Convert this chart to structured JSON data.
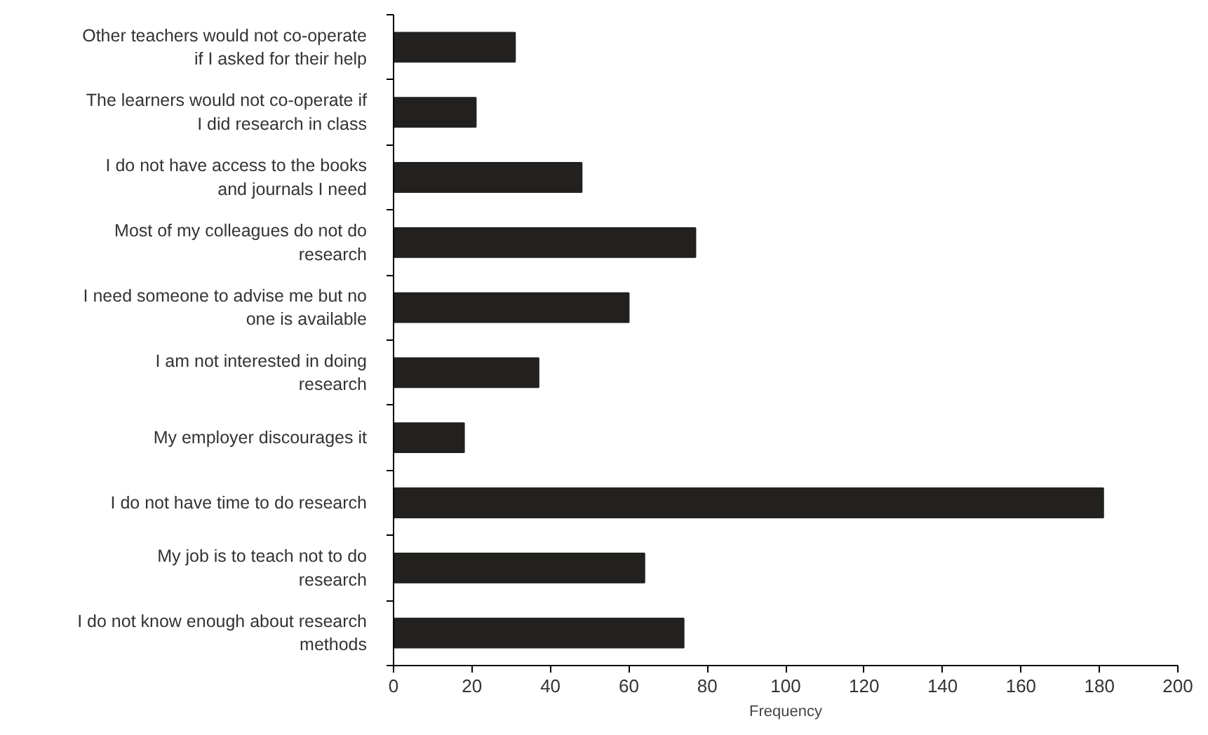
{
  "chart_data": {
    "type": "bar",
    "orientation": "horizontal",
    "xlabel": "Frequency",
    "categories": [
      "Other teachers would not co-operate if I asked for their help",
      "The learners would not co-operate if I did research in class",
      "I do not have access to the books and journals I need",
      "Most of my colleagues do not do research",
      "I need someone to advise me but no one is available",
      "I am not interested in doing research",
      "My employer discourages it",
      "I do not have time to do research",
      "My job is to teach not to do research",
      "I do not know enough about research methods"
    ],
    "values": [
      31,
      21,
      48,
      77,
      60,
      37,
      18,
      181,
      64,
      74
    ],
    "color": "#222120",
    "xlim": [
      0,
      200
    ],
    "xticks": [
      0,
      20,
      40,
      60,
      80,
      100,
      120,
      140,
      160,
      180,
      200
    ],
    "grid": false
  }
}
